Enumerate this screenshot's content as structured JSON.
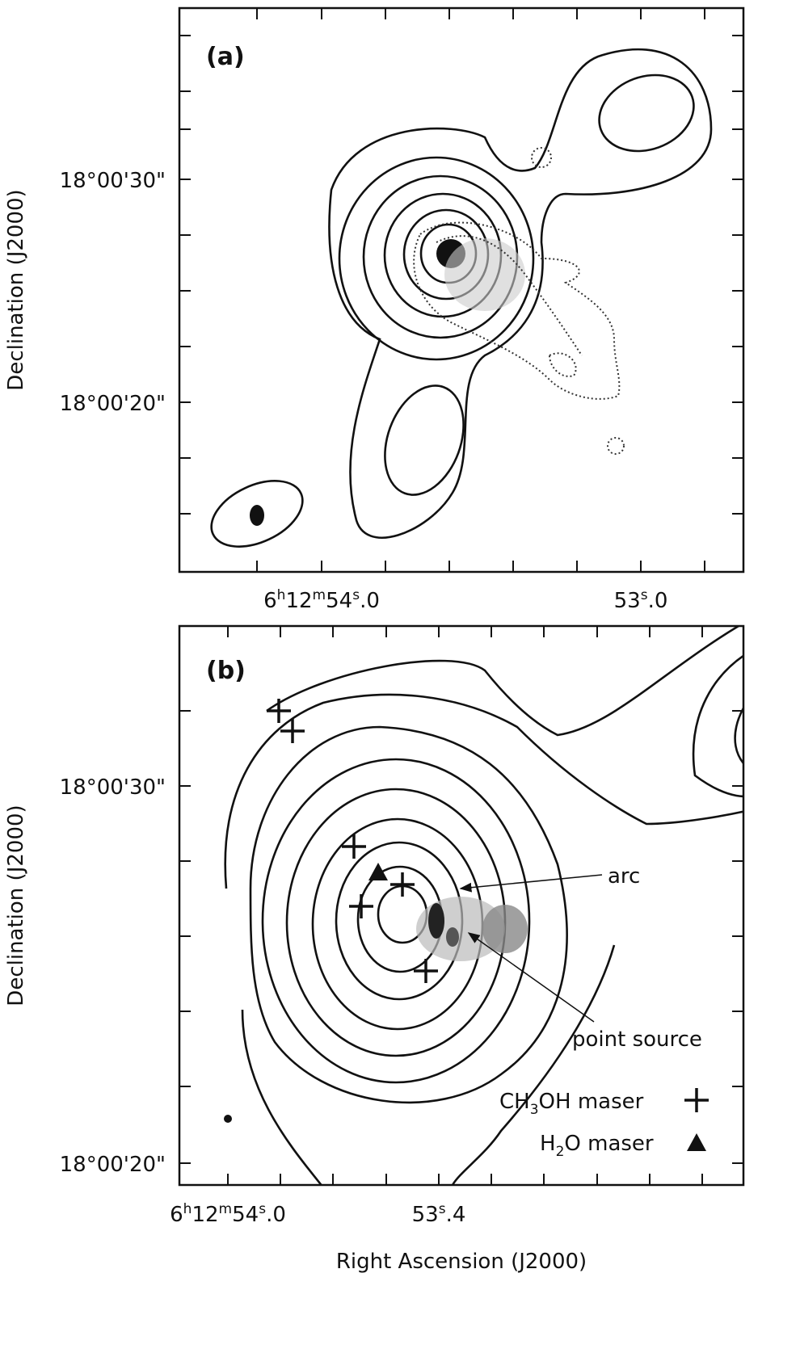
{
  "panels": [
    {
      "label": "(a)",
      "y_axis_label": "Declination (J2000)",
      "y_ticks": [
        "18°00'30\"",
        "18°00'20\""
      ],
      "x_ticks": [
        [
          "6",
          "h",
          "12",
          "m",
          "54",
          "s",
          ".0"
        ],
        [
          "53",
          "s",
          ".0"
        ]
      ]
    },
    {
      "label": "(b)",
      "y_axis_label": "Declination (J2000)",
      "y_ticks": [
        "18°00'30\"",
        "18°00'20\""
      ],
      "x_ticks": [
        [
          "6",
          "h",
          "12",
          "m",
          "54",
          "s",
          ".0"
        ],
        [
          "53",
          "s",
          ".4"
        ]
      ],
      "x_axis_label": "Right Ascension (J2000)",
      "annotations": [
        "arc",
        "point source"
      ],
      "legend": [
        [
          "CH",
          "3",
          "OH maser"
        ],
        [
          "H",
          "2",
          "O maser"
        ]
      ]
    }
  ]
}
